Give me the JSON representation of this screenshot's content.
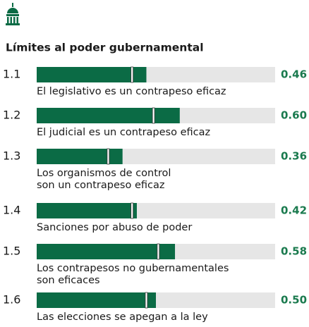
{
  "chart_data": {
    "type": "bar",
    "title": "Límites al poder gubernamental",
    "categories": [
      "1.1",
      "1.2",
      "1.3",
      "1.4",
      "1.5",
      "1.6"
    ],
    "descriptions": [
      [
        "El legislativo es un contrapeso eficaz"
      ],
      [
        "El judicial es un contrapeso eficaz"
      ],
      [
        "Los organismos de control",
        "son un contrapeso eficaz"
      ],
      [
        "Sanciones por abuso de poder"
      ],
      [
        "Los contrapesos no gubernamentales",
        "son eficaces"
      ],
      [
        "Las elecciones se apegan a la ley"
      ]
    ],
    "values": [
      0.46,
      0.6,
      0.36,
      0.42,
      0.58,
      0.5
    ],
    "value_labels": [
      "0.46",
      "0.60",
      "0.36",
      "0.42",
      "0.58",
      "0.50"
    ],
    "markers": [
      0.4,
      0.49,
      0.3,
      0.4,
      0.51,
      0.46
    ],
    "xlim": [
      0,
      1
    ],
    "color": "#0b6b45",
    "track_color": "#e6e6e6"
  }
}
